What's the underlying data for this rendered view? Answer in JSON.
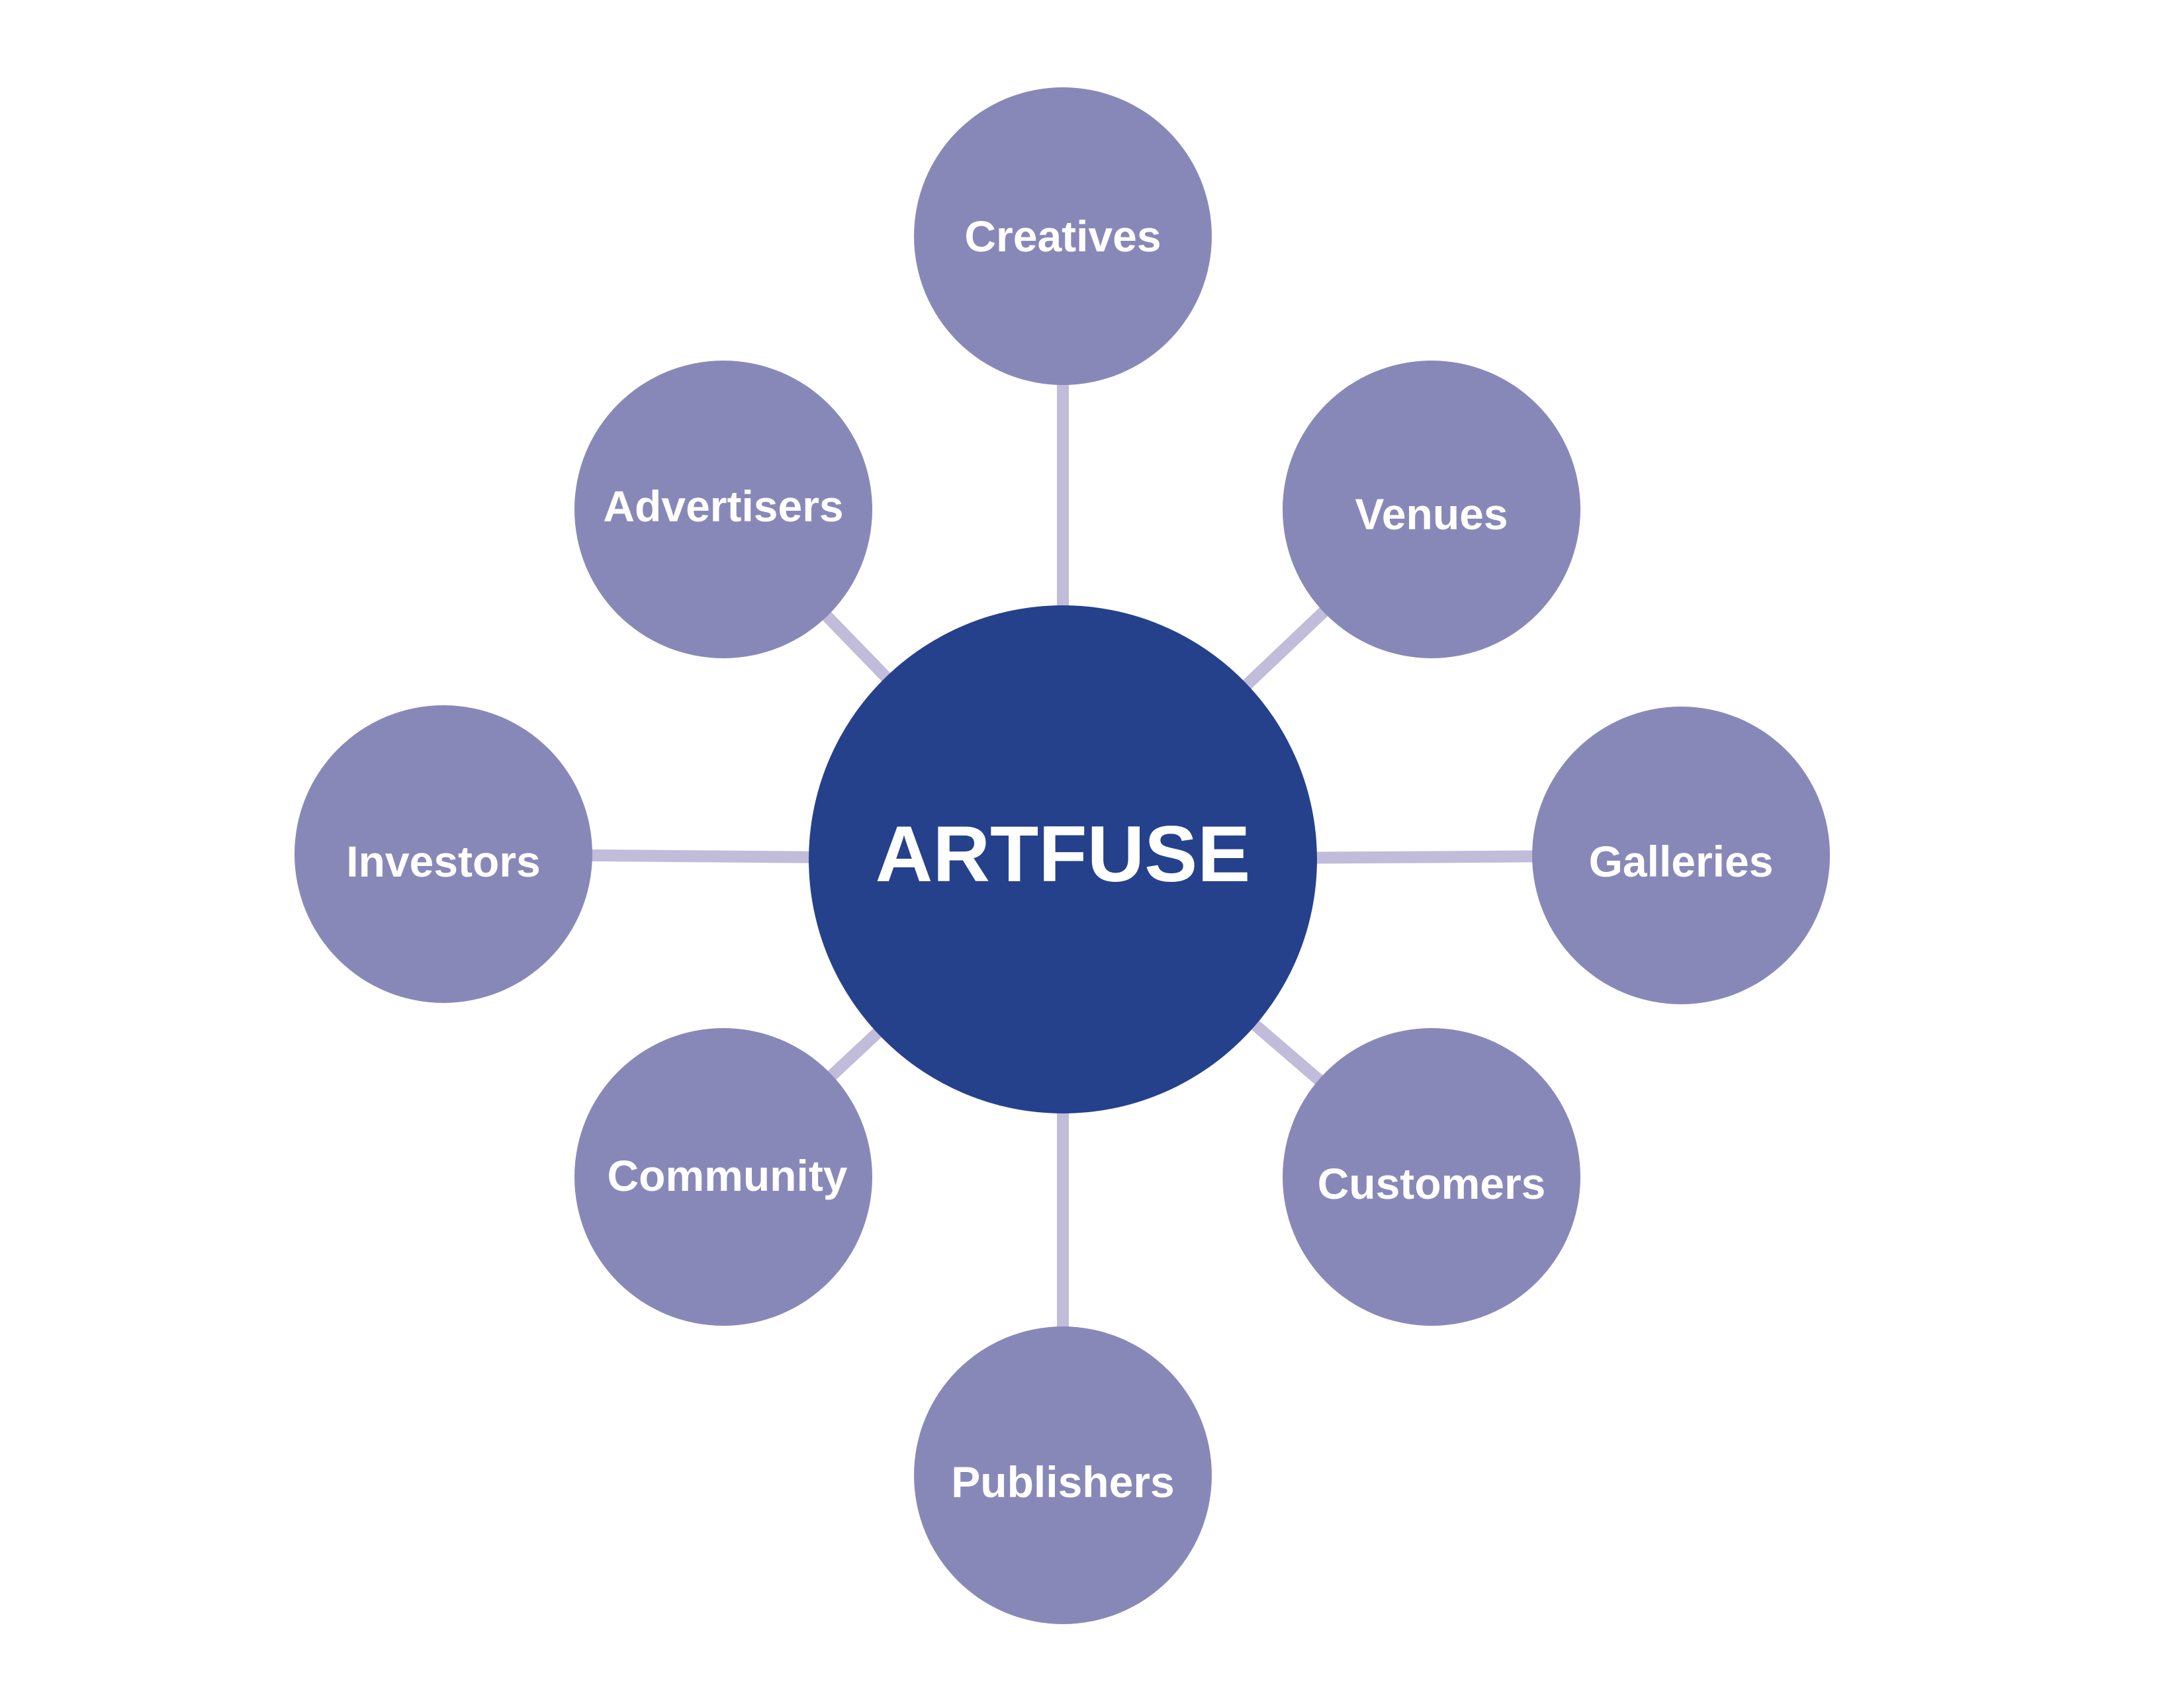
{
  "colors": {
    "background": "#ffffff",
    "hub_fill": "#25418c",
    "node_fill": "#8888b8",
    "connector": "#c0bcd9",
    "text": "#ffffff"
  },
  "hub": {
    "label": "ARTFUSE"
  },
  "nodes": [
    {
      "id": "creatives",
      "label": "Creatives"
    },
    {
      "id": "venues",
      "label": "Venues"
    },
    {
      "id": "galleries",
      "label": "Galleries"
    },
    {
      "id": "customers",
      "label": "Customers"
    },
    {
      "id": "publishers",
      "label": "Publishers"
    },
    {
      "id": "community",
      "label": "Community"
    },
    {
      "id": "investors",
      "label": "Investors"
    },
    {
      "id": "advertisers",
      "label": "Advertisers"
    }
  ]
}
